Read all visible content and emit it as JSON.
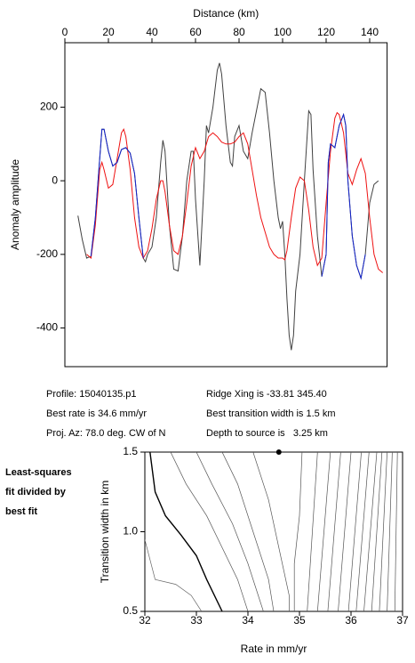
{
  "chart_data": [
    {
      "type": "line",
      "x_label": "Distance (km)",
      "y_label": "Anomaly amplitude",
      "xlim": [
        0,
        148
      ],
      "xticks": [
        0,
        20,
        40,
        60,
        80,
        100,
        120,
        140
      ],
      "ylim": [
        -505,
        375
      ],
      "yticks": [
        -400,
        -200,
        0,
        200
      ],
      "series": [
        {
          "color": "#404040",
          "x": [
            6,
            8,
            10,
            12,
            14,
            16,
            17,
            18,
            20,
            22,
            24,
            26,
            28,
            30,
            32,
            34,
            36,
            37,
            38,
            40,
            42,
            44,
            45,
            46,
            48,
            50,
            52,
            54,
            56,
            58,
            59,
            60,
            62,
            64,
            65,
            66,
            68,
            70,
            71,
            72,
            74,
            76,
            77,
            78,
            80,
            82,
            84,
            86,
            88,
            90,
            92,
            94,
            96,
            98,
            99,
            100,
            101,
            102,
            103,
            104,
            105,
            106,
            108,
            110,
            112,
            113,
            114,
            116,
            118,
            120,
            121,
            122,
            124,
            126,
            128,
            129,
            130,
            132,
            134,
            136,
            138,
            140,
            142,
            144
          ],
          "values": [
            -95,
            -160,
            -210,
            -205,
            -100,
            60,
            140,
            140,
            80,
            40,
            50,
            85,
            90,
            75,
            20,
            -100,
            -210,
            -220,
            -200,
            -180,
            -100,
            50,
            110,
            80,
            -120,
            -240,
            -245,
            -150,
            0,
            80,
            80,
            -50,
            -230,
            0,
            150,
            130,
            200,
            300,
            320,
            290,
            150,
            50,
            40,
            120,
            150,
            80,
            60,
            130,
            190,
            250,
            240,
            130,
            0,
            -100,
            -130,
            -110,
            -200,
            -320,
            -420,
            -460,
            -420,
            -300,
            -200,
            0,
            190,
            180,
            30,
            -150,
            -260,
            -200,
            50,
            100,
            90,
            150,
            180,
            150,
            0,
            -150,
            -230,
            -265,
            -200,
            -60,
            -10,
            0
          ]
        },
        {
          "color": "#ee1111",
          "x": [
            10,
            12,
            14,
            16,
            17,
            18,
            20,
            22,
            24,
            26,
            27,
            28,
            30,
            32,
            34,
            36,
            38,
            40,
            42,
            44,
            45,
            46,
            48,
            50,
            52,
            54,
            56,
            58,
            60,
            62,
            64,
            66,
            68,
            70,
            72,
            74,
            76,
            78,
            80,
            82,
            84,
            86,
            88,
            90,
            92,
            94,
            96,
            98,
            100,
            101,
            102,
            104,
            106,
            108,
            110,
            112,
            114,
            116,
            118,
            120,
            122,
            124,
            125,
            126,
            128,
            130,
            132,
            134,
            136,
            138,
            140,
            142,
            144,
            146
          ],
          "values": [
            -200,
            -210,
            -120,
            30,
            50,
            30,
            -20,
            -10,
            60,
            130,
            140,
            120,
            30,
            -100,
            -180,
            -210,
            -190,
            -130,
            -50,
            0,
            0,
            -30,
            -120,
            -190,
            -200,
            -150,
            -60,
            40,
            90,
            60,
            80,
            120,
            130,
            120,
            105,
            100,
            100,
            105,
            120,
            130,
            100,
            30,
            -40,
            -100,
            -140,
            -180,
            -200,
            -210,
            -210,
            -215,
            -190,
            -100,
            -20,
            10,
            0,
            -80,
            -180,
            -230,
            -210,
            -60,
            80,
            170,
            185,
            180,
            130,
            20,
            -10,
            30,
            60,
            20,
            -100,
            -200,
            -240,
            -250
          ]
        },
        {
          "color": "#1122cc",
          "x": [
            12,
            14,
            16,
            17,
            18,
            20,
            22,
            24,
            26,
            28,
            30,
            32,
            34,
            36,
            77,
            118,
            120,
            121,
            122,
            124,
            126,
            128,
            129,
            130,
            132,
            134,
            136,
            138
          ],
          "values": [
            -205,
            -100,
            60,
            140,
            140,
            80,
            40,
            50,
            85,
            90,
            75,
            20,
            -100,
            -210,
            null,
            -260,
            -200,
            50,
            100,
            90,
            150,
            180,
            150,
            0,
            -150,
            -230,
            -265,
            -200
          ]
        }
      ]
    },
    {
      "type": "contour",
      "x_label": "Rate in mm/yr",
      "y_label": "Transition width in km",
      "xlim": [
        32,
        37
      ],
      "xticks": [
        32,
        33,
        34,
        35,
        36,
        37
      ],
      "ylim": [
        0.5,
        1.5
      ],
      "yticks": [
        {
          "value": 0.5,
          "label": "0.5"
        },
        {
          "value": 1,
          "label": "1.0"
        },
        {
          "value": 1.5,
          "label": "1.5"
        }
      ],
      "best_point": {
        "x": 34.6,
        "y": 1.5
      },
      "contours": [
        {
          "color": "#666666",
          "x": [
            32,
            32.2,
            32.6,
            32.9,
            33.1
          ],
          "y": [
            0.95,
            0.7,
            0.67,
            0.6,
            0.5
          ]
        },
        {
          "color": "#000000",
          "x": [
            32.1,
            32.2,
            32.4,
            32.7,
            33,
            33.2,
            33.5
          ],
          "y": [
            1.5,
            1.25,
            1.1,
            0.98,
            0.85,
            0.7,
            0.5
          ]
        },
        {
          "color": "#555555",
          "x": [
            32.5,
            32.8,
            33.2,
            33.5,
            33.8,
            34
          ],
          "y": [
            1.5,
            1.3,
            1.1,
            0.9,
            0.7,
            0.5
          ]
        },
        {
          "color": "#555555",
          "x": [
            33,
            33.3,
            33.7,
            34,
            34.2,
            34.3
          ],
          "y": [
            1.5,
            1.3,
            1.05,
            0.8,
            0.6,
            0.5
          ]
        },
        {
          "color": "#555555",
          "x": [
            33.5,
            33.8,
            34.1,
            34.4,
            34.5
          ],
          "y": [
            1.5,
            1.3,
            1,
            0.7,
            0.5
          ]
        },
        {
          "color": "#555555",
          "x": [
            34.1,
            34.4,
            34.6,
            34.8,
            34.8
          ],
          "y": [
            1.5,
            1.2,
            0.9,
            0.6,
            0.5
          ]
        },
        {
          "color": "#555555",
          "x": [
            35.05,
            35,
            34.9,
            34.9
          ],
          "y": [
            1.5,
            1.1,
            0.8,
            0.5
          ]
        },
        {
          "color": "#555555",
          "x": [
            35.15,
            35.35
          ],
          "y": [
            0.5,
            1.5
          ]
        },
        {
          "color": "#555555",
          "x": [
            35.35,
            35.6
          ],
          "y": [
            0.5,
            1.5
          ]
        },
        {
          "color": "#555555",
          "x": [
            35.55,
            35.8
          ],
          "y": [
            0.5,
            1.5
          ]
        },
        {
          "color": "#555555",
          "x": [
            35.75,
            36
          ],
          "y": [
            0.5,
            1.5
          ]
        },
        {
          "color": "#555555",
          "x": [
            35.95,
            36.2
          ],
          "y": [
            0.5,
            1.5
          ]
        },
        {
          "color": "#555555",
          "x": [
            36.1,
            36.35
          ],
          "y": [
            0.5,
            1.5
          ]
        },
        {
          "color": "#555555",
          "x": [
            36.25,
            36.5
          ],
          "y": [
            0.5,
            1.5
          ]
        },
        {
          "color": "#555555",
          "x": [
            36.4,
            36.6
          ],
          "y": [
            0.5,
            1.5
          ]
        },
        {
          "color": "#555555",
          "x": [
            36.55,
            36.7
          ],
          "y": [
            0.5,
            1.5
          ]
        },
        {
          "color": "#555555",
          "x": [
            36.7,
            36.8
          ],
          "y": [
            0.5,
            1.5
          ]
        },
        {
          "color": "#555555",
          "x": [
            36.85,
            36.9
          ],
          "y": [
            0.5,
            1.5
          ]
        }
      ]
    }
  ],
  "info": {
    "profile": "Profile: 15040135.p1",
    "ridge": "Ridge Xing is -33.81 345.40",
    "rate": "Best rate is 34.6 mm/yr",
    "width": "Best transition width is 1.5 km",
    "azimuth": "Proj. Az: 78.0 deg. CW of N",
    "depth": "Depth to source is   3.25 km"
  },
  "side_note": [
    "Least-squares",
    "fit divided by",
    "best fit"
  ]
}
